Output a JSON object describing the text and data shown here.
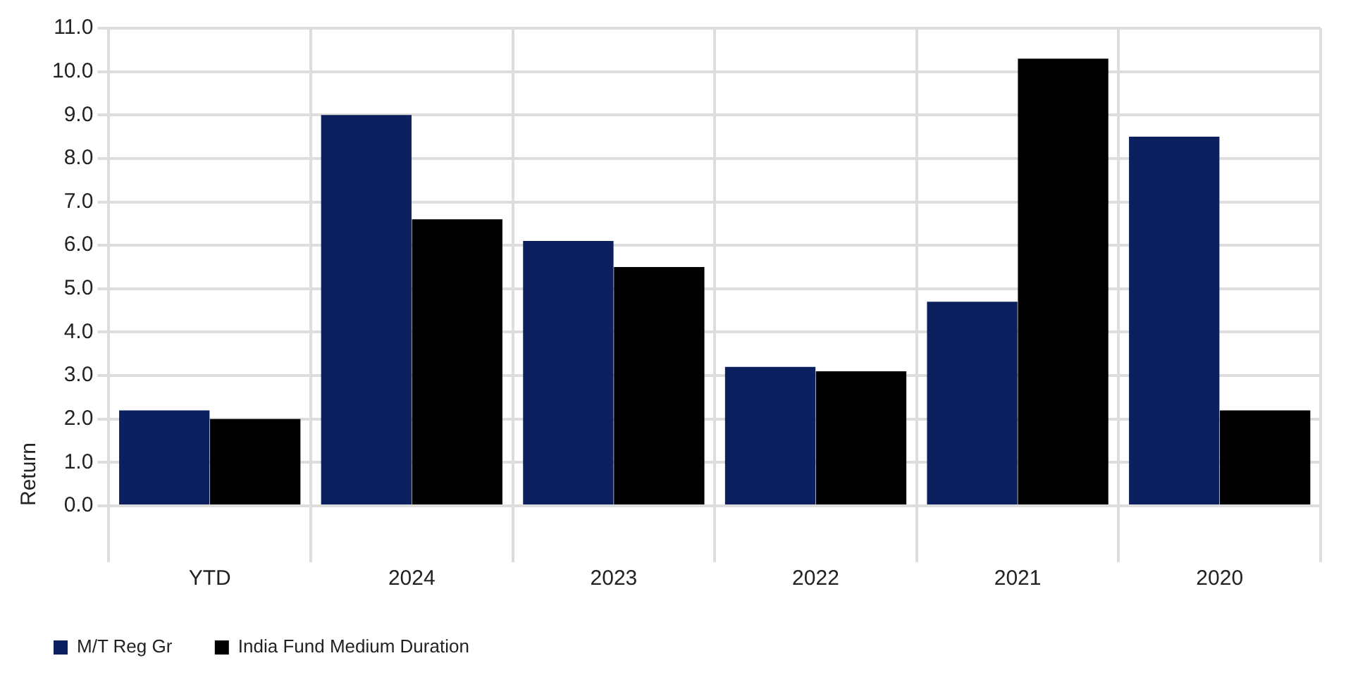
{
  "chart_data": {
    "type": "bar",
    "ylabel": "Return",
    "categories": [
      "YTD",
      "2024",
      "2023",
      "2022",
      "2021",
      "2020"
    ],
    "series": [
      {
        "name": "M/T Reg Gr",
        "color": "#0c1f5f",
        "values": [
          2.2,
          9.0,
          6.1,
          3.2,
          4.7,
          8.5
        ]
      },
      {
        "name": "India Fund Medium Duration",
        "color": "#000000",
        "values": [
          2.0,
          6.6,
          5.5,
          3.1,
          10.3,
          2.2
        ]
      }
    ],
    "ylim": [
      0,
      11
    ],
    "yticks": [
      {
        "value": 0,
        "label": "0.0"
      },
      {
        "value": 1,
        "label": "1.0"
      },
      {
        "value": 2,
        "label": "2.0"
      },
      {
        "value": 3,
        "label": "3.0"
      },
      {
        "value": 4,
        "label": "4.0"
      },
      {
        "value": 5,
        "label": "5.0"
      },
      {
        "value": 6,
        "label": "6.0"
      },
      {
        "value": 7,
        "label": "7.0"
      },
      {
        "value": 8,
        "label": "8.0"
      },
      {
        "value": 9,
        "label": "9.0"
      },
      {
        "value": 10,
        "label": "10.0"
      },
      {
        "value": 11,
        "label": "11.0"
      }
    ],
    "grid": true,
    "legend": "bottom"
  }
}
